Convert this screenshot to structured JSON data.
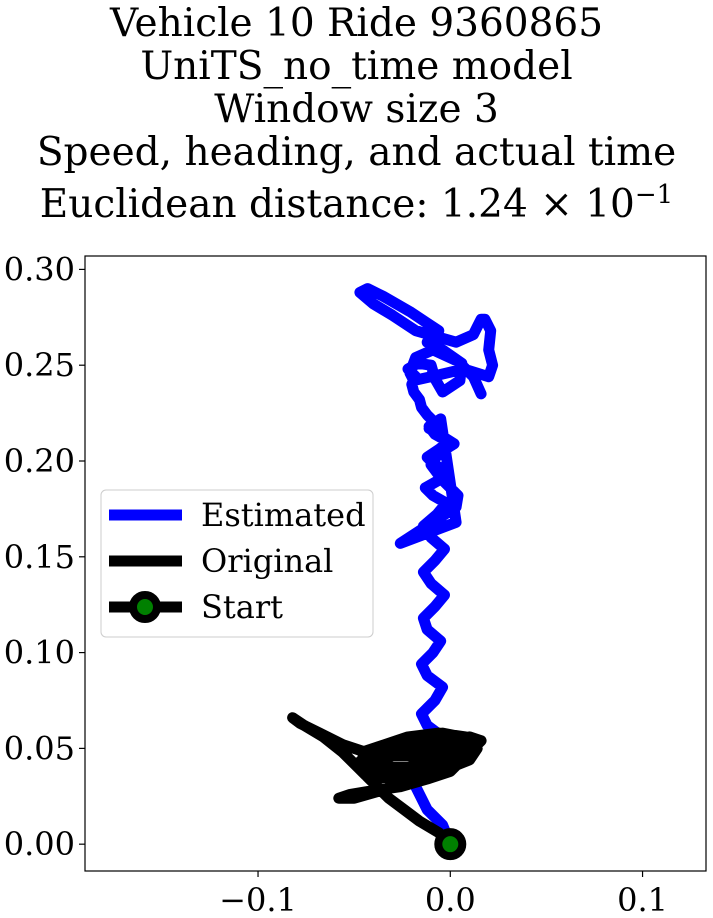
{
  "chart_data": {
    "type": "line",
    "title_lines": [
      "Vehicle 10 Ride 9360865",
      "UniTS_no_time model",
      "Window size 3",
      "Speed, heading, and actual time"
    ],
    "distance_prefix": "Euclidean distance: 1.24",
    "distance_exponent": "−1",
    "xlim": [
      -0.19,
      0.133
    ],
    "ylim": [
      -0.014,
      0.307
    ],
    "x_ticks": [
      -0.1,
      0.0,
      0.1
    ],
    "x_tick_labels": [
      "−0.1",
      "0.0",
      "0.1"
    ],
    "y_ticks": [
      0.0,
      0.05,
      0.1,
      0.15,
      0.2,
      0.25,
      0.3
    ],
    "y_tick_labels": [
      "0.00",
      "0.05",
      "0.10",
      "0.15",
      "0.20",
      "0.25",
      "0.30"
    ],
    "grid": false,
    "legend_position": "center-left",
    "colors": {
      "estimated": "#0000ff",
      "original": "#000000",
      "start_marker": "#008000"
    },
    "series": [
      {
        "name": "Estimated",
        "x": [
          0.0,
          -0.004,
          -0.012,
          -0.018,
          -0.016,
          -0.008,
          -0.004,
          -0.012,
          -0.015,
          -0.008,
          -0.004,
          -0.012,
          -0.015,
          -0.009,
          -0.005,
          -0.012,
          -0.014,
          -0.008,
          -0.003,
          -0.01,
          -0.014,
          -0.008,
          -0.003,
          -0.01,
          -0.014,
          -0.007,
          -0.002,
          -0.009,
          -0.013,
          -0.006,
          -0.001,
          -0.008,
          -0.012,
          -0.006,
          -0.001,
          -0.008,
          -0.011,
          -0.005,
          0.003,
          -0.026,
          0.003,
          0.004,
          -0.004,
          -0.01,
          -0.006,
          0.002,
          -0.006,
          -0.011,
          -0.008,
          -0.012,
          -0.015,
          -0.016,
          -0.019,
          -0.02,
          -0.018,
          -0.022,
          -0.017,
          -0.01,
          -0.008,
          -0.004,
          0.005,
          0.006,
          -0.004,
          -0.012,
          -0.009,
          -0.006,
          -0.012,
          -0.021,
          -0.035,
          -0.043,
          -0.047,
          -0.04,
          -0.03,
          -0.018,
          0.003,
          0.012,
          0.014,
          0.016,
          0.018,
          0.021,
          0.02,
          0.022,
          0.02,
          0.007,
          -0.01,
          -0.019,
          -0.021,
          -0.018,
          -0.009,
          0.004,
          0.012,
          0.016
        ],
        "y": [
          0.0,
          0.01,
          0.018,
          0.03,
          0.04,
          0.048,
          0.056,
          0.062,
          0.068,
          0.075,
          0.082,
          0.088,
          0.094,
          0.1,
          0.106,
          0.112,
          0.118,
          0.124,
          0.13,
          0.136,
          0.142,
          0.148,
          0.154,
          0.16,
          0.166,
          0.172,
          0.178,
          0.182,
          0.186,
          0.19,
          0.194,
          0.198,
          0.202,
          0.206,
          0.21,
          0.214,
          0.218,
          0.222,
          0.168,
          0.157,
          0.176,
          0.182,
          0.19,
          0.198,
          0.204,
          0.209,
          0.214,
          0.217,
          0.22,
          0.224,
          0.228,
          0.232,
          0.236,
          0.24,
          0.244,
          0.248,
          0.251,
          0.25,
          0.243,
          0.236,
          0.242,
          0.251,
          0.258,
          0.262,
          0.266,
          0.268,
          0.272,
          0.278,
          0.286,
          0.29,
          0.288,
          0.282,
          0.276,
          0.268,
          0.262,
          0.266,
          0.27,
          0.274,
          0.274,
          0.268,
          0.258,
          0.25,
          0.244,
          0.248,
          0.244,
          0.242,
          0.246,
          0.254,
          0.258,
          0.252,
          0.244,
          0.235
        ]
      },
      {
        "name": "Original",
        "x": [
          0.0,
          -0.006,
          -0.016,
          -0.024,
          -0.032,
          -0.04,
          -0.048,
          -0.056,
          -0.066,
          -0.076,
          -0.082,
          -0.078,
          -0.068,
          -0.056,
          -0.044,
          -0.032,
          -0.02,
          -0.008,
          0.002,
          0.006,
          0.0,
          -0.012,
          -0.026,
          -0.04,
          -0.052,
          -0.058,
          -0.05,
          -0.036,
          -0.02,
          -0.006,
          0.004,
          0.008,
          0.0,
          -0.012,
          -0.028,
          -0.044,
          -0.048,
          -0.038,
          -0.022,
          -0.008,
          0.002,
          0.006,
          -0.004,
          -0.018,
          -0.03,
          -0.04,
          -0.03,
          -0.014,
          0.0,
          0.01,
          0.014,
          0.008,
          -0.006,
          -0.022,
          -0.034,
          -0.046,
          -0.036,
          -0.018,
          -0.002,
          0.01,
          0.016,
          0.01,
          -0.004,
          -0.02,
          -0.036,
          -0.044,
          -0.04,
          -0.026,
          -0.008,
          0.006,
          0.012,
          0.004,
          -0.01,
          -0.022
        ],
        "y": [
          0.0,
          0.006,
          0.012,
          0.018,
          0.024,
          0.032,
          0.04,
          0.048,
          0.056,
          0.062,
          0.066,
          0.063,
          0.058,
          0.052,
          0.048,
          0.046,
          0.046,
          0.048,
          0.05,
          0.044,
          0.038,
          0.034,
          0.03,
          0.028,
          0.026,
          0.024,
          0.024,
          0.028,
          0.034,
          0.04,
          0.046,
          0.052,
          0.056,
          0.054,
          0.05,
          0.046,
          0.042,
          0.04,
          0.04,
          0.044,
          0.05,
          0.056,
          0.058,
          0.054,
          0.05,
          0.044,
          0.04,
          0.038,
          0.04,
          0.044,
          0.05,
          0.056,
          0.058,
          0.056,
          0.052,
          0.048,
          0.046,
          0.048,
          0.052,
          0.056,
          0.054,
          0.048,
          0.044,
          0.04,
          0.038,
          0.036,
          0.034,
          0.036,
          0.04,
          0.046,
          0.05,
          0.052,
          0.05,
          0.046
        ]
      }
    ],
    "start": {
      "name": "Start",
      "x": 0.0,
      "y": 0.0
    },
    "legend": [
      {
        "label": "Estimated",
        "style": "blue-line"
      },
      {
        "label": "Original",
        "style": "black-line"
      },
      {
        "label": "Start",
        "style": "start-marker"
      }
    ]
  }
}
